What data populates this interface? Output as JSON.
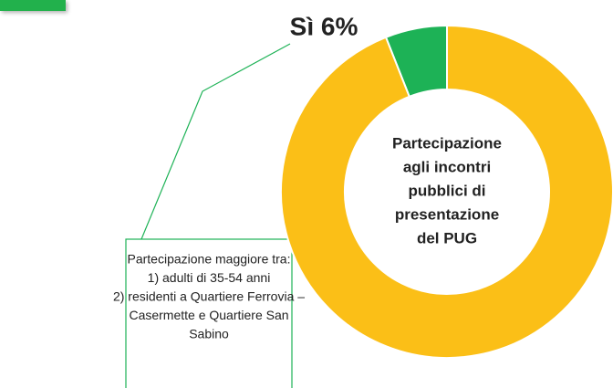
{
  "chart_data": {
    "type": "donut",
    "values": [
      6,
      94
    ],
    "value_labels": [
      "Sì 6%",
      null
    ],
    "colors": [
      "#1db256",
      "#fbbf17"
    ],
    "center_text": [
      "Partecipazione",
      "agli incontri",
      "pubblici di",
      "presentazione",
      "del PUG"
    ],
    "annotation": [
      "Partecipazione maggiore tra:",
      "1) adulti di 35-54 anni",
      "2) residenti a Quartiere Ferrovia –",
      "Casermette  e Quartiere San",
      "Sabino"
    ]
  }
}
